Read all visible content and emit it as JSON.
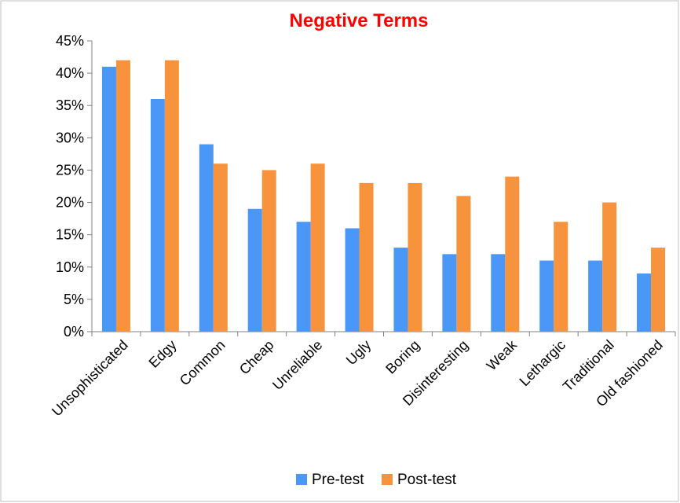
{
  "chart_data": {
    "type": "bar",
    "title": "Negative Terms",
    "xlabel": "",
    "ylabel": "",
    "categories": [
      "Unsophisticated",
      "Edgy",
      "Common",
      "Cheap",
      "Unreliable",
      "Ugly",
      "Boring",
      "Disinteresting",
      "Weak",
      "Lethargic",
      "Traditional",
      "Old fashioned"
    ],
    "series": [
      {
        "name": "Pre-test",
        "color": "#4a97f7",
        "values": [
          41,
          36,
          29,
          19,
          17,
          16,
          13,
          12,
          12,
          11,
          11,
          9
        ]
      },
      {
        "name": "Post-test",
        "color": "#f7923d",
        "values": [
          42,
          42,
          26,
          25,
          26,
          23,
          23,
          21,
          24,
          17,
          20,
          13
        ]
      }
    ],
    "y_ticks": [
      "0%",
      "5%",
      "10%",
      "15%",
      "20%",
      "25%",
      "30%",
      "35%",
      "40%",
      "45%"
    ],
    "ylim": [
      0,
      45
    ],
    "y_unit": "%",
    "grid": false,
    "legend_position": "bottom"
  }
}
